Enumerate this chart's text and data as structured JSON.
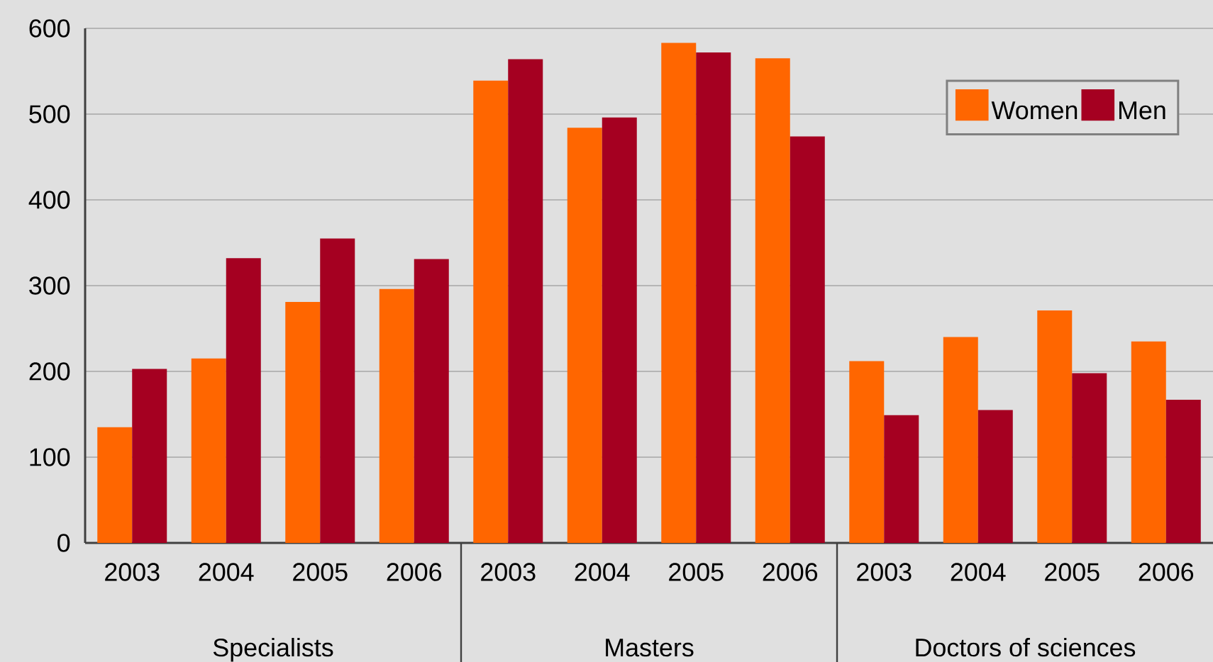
{
  "chart_data": {
    "type": "bar",
    "categories": [
      "2003",
      "2004",
      "2005",
      "2006",
      "2003",
      "2004",
      "2005",
      "2006",
      "2003",
      "2004",
      "2005",
      "2006"
    ],
    "series": [
      {
        "name": "Women",
        "color": "#ff6600",
        "values": [
          135,
          215,
          281,
          296,
          539,
          484,
          583,
          565,
          212,
          240,
          271,
          235
        ]
      },
      {
        "name": "Men",
        "color": "#a50021",
        "values": [
          203,
          332,
          355,
          331,
          564,
          496,
          572,
          474,
          149,
          155,
          198,
          167
        ]
      }
    ],
    "annotations": [
      "Specialists",
      "Masters",
      "Doctors of sciences"
    ],
    "ylim": [
      0,
      600
    ],
    "yticks": [
      0,
      100,
      200,
      300,
      400,
      500,
      600
    ],
    "grid": "y",
    "legend": "top right"
  }
}
